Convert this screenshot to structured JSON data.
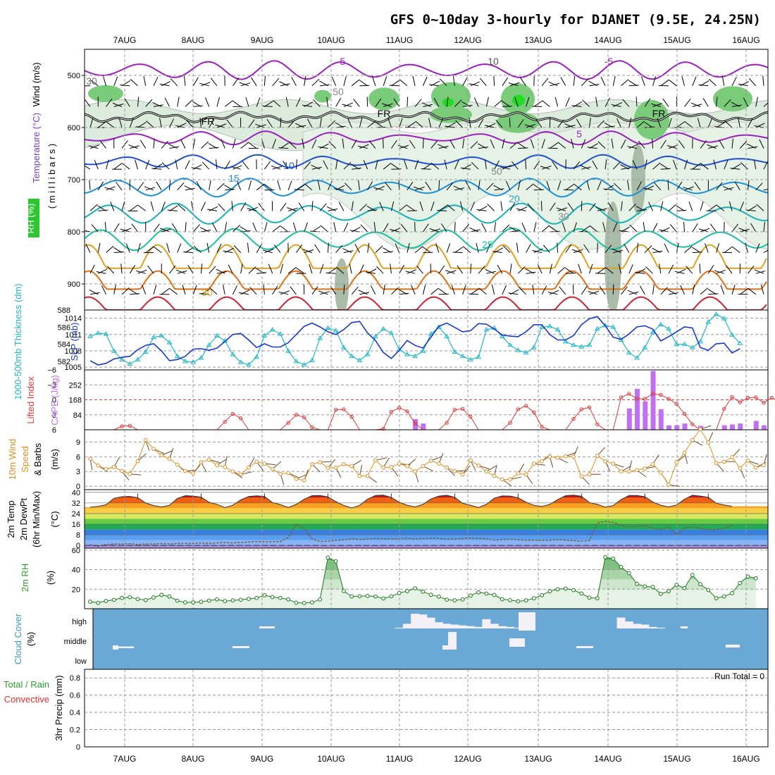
{
  "title": "GFS 0~10day 3-hourly for DJANET (9.5E, 24.25N)",
  "run_total": "Run Total = 0",
  "colors": {
    "temperature": "#d43c3c",
    "wind": "#000000",
    "rh": "#2ec62e",
    "thickness": "#20b8c8",
    "slp": "#1838d0",
    "lifted_index": "#e03a3a",
    "cape": "#c070f0",
    "wind10": "#e09020",
    "rh2m": "#2ea02e",
    "cloud": "#6aa8d6",
    "cloud_label": "#3a9ad0",
    "precip_total": "#2ea02e",
    "precip_conv": "#e03030"
  },
  "chart_data": [
    {
      "type": "contour",
      "name": "upper-air",
      "ylabel_parts": [
        "Wind (m/s)",
        "Temperature (°C)",
        "RH (%)"
      ],
      "ylabel_right": "( m i l l i b a r s )",
      "yticks": [
        500,
        600,
        700,
        800,
        900
      ],
      "ylim": [
        450,
        950
      ],
      "x_dates": [
        "7AUG",
        "8AUG",
        "9AUG",
        "10AUG",
        "11AUG",
        "12AUG",
        "13AUG",
        "14AUG",
        "15AUG",
        "16AUG"
      ],
      "contour_labels": [
        "-5",
        "-5",
        "10",
        "30",
        "FR",
        "FR",
        "FR",
        "5",
        "10",
        "15",
        "20",
        "25",
        "30",
        "30",
        "50",
        "50"
      ],
      "isotherms": [
        {
          "temp": -5,
          "base_mb": 490,
          "amp": 14,
          "color": "#9a20c0"
        },
        {
          "temp": 5,
          "base_mb": 620,
          "amp": 9,
          "color": "#9a20c0"
        },
        {
          "temp": 10,
          "base_mb": 665,
          "amp": 9,
          "color": "#2050d0"
        },
        {
          "temp": 15,
          "base_mb": 715,
          "amp": 14,
          "color": "#1c90d8"
        },
        {
          "temp": 20,
          "base_mb": 765,
          "amp": 16,
          "color": "#18b0b8"
        },
        {
          "temp": 25,
          "base_mb": 815,
          "amp": 18,
          "color": "#18c0a0"
        }
      ]
    },
    {
      "type": "line",
      "name": "thickness-slp",
      "ylabel_left": "1000-500mb Thickness (dm)",
      "ylabel_right": "SLP (mb)",
      "yticks_left": [
        582,
        584,
        586,
        588
      ],
      "yticks_right": [
        1005,
        1008,
        1011,
        1014
      ],
      "ylim_left": [
        581,
        588
      ],
      "ylim_right": [
        1004.5,
        1015.5
      ],
      "series": [
        {
          "name": "thickness",
          "values": [
            584.9,
            585.3,
            585.2,
            583.2,
            582.2,
            581.7,
            582.2,
            583.1,
            584.8,
            585.0,
            584.2,
            582.6,
            582.0,
            581.9,
            582.4,
            583.9,
            585.0,
            584.4,
            582.8,
            581.9,
            581.6,
            582.5,
            585.0,
            585.7,
            585.2,
            583.2,
            582.0,
            581.6,
            582.1,
            584.7,
            585.9,
            585.6,
            583.6,
            582.6,
            582.1,
            582.8,
            584.9,
            585.8,
            585.3,
            583.4,
            582.8,
            582.6,
            583.2,
            585.2,
            586.0,
            584.9,
            583.1,
            582.6,
            582.2,
            582.5,
            585.7,
            585.9,
            584.9,
            583.9,
            583.3,
            583.0,
            583.6,
            586.0,
            586.1,
            585.7,
            584.3,
            583.9,
            583.7,
            583.9,
            585.8,
            586.2,
            586.0,
            584.5,
            583.0,
            582.4,
            583.6,
            585.4,
            586.3,
            585.8,
            584.0,
            584.0,
            583.6,
            584.3,
            586.6,
            587.5,
            587.0,
            585.1,
            584.1
          ]
        },
        {
          "name": "SLP",
          "values": [
            1006.2,
            1005.4,
            1005.7,
            1006.5,
            1006.8,
            1007.0,
            1008.2,
            1009.0,
            1009.3,
            1008.0,
            1006.2,
            1006.4,
            1007.0,
            1008.3,
            1008.4,
            1008.1,
            1008.5,
            1009.7,
            1011.0,
            1011.2,
            1010.0,
            1008.6,
            1009.3,
            1008.7,
            1008.7,
            1009.5,
            1011.0,
            1012.5,
            1013.1,
            1012.4,
            1011.5,
            1011.0,
            1011.9,
            1013.2,
            1013.4,
            1011.3,
            1009.9,
            1007.7,
            1006.6,
            1008.1,
            1009.9,
            1009.0,
            1008.5,
            1010.5,
            1012.5,
            1013.1,
            1012.3,
            1011.5,
            1011.7,
            1013.0,
            1012.9,
            1012.0,
            1010.9,
            1010.7,
            1010.6,
            1011.5,
            1012.8,
            1012.8,
            1011.0,
            1010.0,
            1010.0,
            1010.8,
            1012.8,
            1013.9,
            1014.3,
            1012.6,
            1010.5,
            1010.1,
            1011.1,
            1012.4,
            1012.6,
            1012.0,
            1009.8,
            1010.6,
            1011.5,
            1012.4,
            1012.2,
            1008.6,
            1008.1,
            1009.3,
            1009.4,
            1007.6,
            1008.4
          ]
        }
      ]
    },
    {
      "type": "bar-line",
      "name": "cape-li",
      "ylabel_left": "Lifted Index",
      "ylabel_right": "CAPE (J/kg)",
      "yticks_left": [
        -6,
        -3,
        0,
        3,
        6
      ],
      "yticks_right": [
        84,
        168,
        252
      ],
      "ylim_left": [
        -6,
        6
      ],
      "ylim_right": [
        0,
        336
      ],
      "series": [
        {
          "name": "Lifted Index",
          "values": [
            6.0,
            6.0,
            6.0,
            6.0,
            5.3,
            5.2,
            6.0,
            6.0,
            6.0,
            6.0,
            6.0,
            6.0,
            6.0,
            6.0,
            6.0,
            6.0,
            6.0,
            4.4,
            2.8,
            3.7,
            6.0,
            6.0,
            6.0,
            6.0,
            6.0,
            4.6,
            3.0,
            3.5,
            5.5,
            6.0,
            6.0,
            2.0,
            1.9,
            3.4,
            6.0,
            6.0,
            6.0,
            5.8,
            2.4,
            1.6,
            2.3,
            4.7,
            6.0,
            6.0,
            6.0,
            4.6,
            2.0,
            1.8,
            3.4,
            6.0,
            6.0,
            6.0,
            6.0,
            4.6,
            1.9,
            1.2,
            2.5,
            5.4,
            6.0,
            6.0,
            6.0,
            3.8,
            1.9,
            1.5,
            4.9,
            6.0,
            6.0,
            -0.5,
            -1.2,
            -0.2,
            -0.2,
            -1.2,
            -1.0,
            -0.2,
            0.8,
            2.8,
            4.9,
            6.0,
            6.0,
            6.0,
            1.8,
            -0.6,
            0.5,
            -0.4,
            -0.5,
            0.6,
            -0.4,
            0.4
          ]
        },
        {
          "name": "CAPE",
          "values": [
            0,
            0,
            0,
            0,
            0,
            0,
            0,
            0,
            0,
            0,
            0,
            0,
            0,
            0,
            0,
            0,
            0,
            0,
            0,
            0,
            0,
            0,
            0,
            0,
            0,
            0,
            0,
            0,
            0,
            0,
            0,
            0,
            0,
            0,
            0,
            0,
            0,
            0,
            0,
            0,
            0,
            60,
            35,
            0,
            0,
            0,
            0,
            0,
            0,
            0,
            0,
            0,
            0,
            0,
            0,
            0,
            0,
            0,
            0,
            0,
            0,
            0,
            0,
            0,
            0,
            0,
            0,
            0,
            0,
            0,
            0,
            0,
            0,
            0,
            0,
            0,
            0,
            0,
            0,
            0,
            0,
            0,
            0,
            0,
            0,
            0,
            0,
            0
          ]
        }
      ]
    },
    {
      "type": "line",
      "name": "wind10",
      "ylabel_left": "10m Wind Speed & Barbs",
      "ylabel_right": "(m/s)",
      "yticks": [
        0,
        3,
        6,
        9
      ],
      "ylim": [
        -0.7,
        11.5
      ],
      "values": [
        5.6,
        4.2,
        3.5,
        3.9,
        3.1,
        2.5,
        5.1,
        9.4,
        7.6,
        6.3,
        5.6,
        4.4,
        3.1,
        2.6,
        4.9,
        5.4,
        4.3,
        3.9,
        3.0,
        2.4,
        3.8,
        5.0,
        4.6,
        3.5,
        2.5,
        2.7,
        1.5,
        1.2,
        4.5,
        4.9,
        3.7,
        3.8,
        4.5,
        4.1,
        2.1,
        2.1,
        5.3,
        3.8,
        3.9,
        4.6,
        4.1,
        3.0,
        4.1,
        5.2,
        4.6,
        3.8,
        3.1,
        2.4,
        5.3,
        4.2,
        3.0,
        2.1,
        1.4,
        1.4,
        2.6,
        2.4,
        4.6,
        5.1,
        6.0,
        5.8,
        6.1,
        6.0,
        2.0,
        2.4,
        6.2,
        5.1,
        4.6,
        3.0,
        3.0,
        3.3,
        3.6,
        4.5,
        2.8,
        0.3,
        4.9,
        6.8,
        9.4,
        11.6,
        8.9,
        4.7,
        5.0,
        5.9,
        3.7,
        5.2,
        3.8,
        4.3
      ]
    },
    {
      "type": "area",
      "name": "temp2m",
      "ylabel_left": [
        "2m Temp",
        "2m DewPt",
        "(6hr Min/Max)"
      ],
      "ylabel_right": "(°C)",
      "yticks": [
        0,
        8,
        16,
        24,
        32,
        40
      ],
      "ylim": [
        -2,
        42
      ],
      "temp": [
        28.8,
        29.4,
        30.6,
        35.5,
        36.7,
        36.9,
        36.0,
        32.0,
        30.0,
        29.0,
        30.2,
        35.4,
        37.5,
        37.2,
        36.4,
        32.5,
        31.0,
        28.5,
        30.3,
        34.3,
        36.8,
        37.4,
        36.9,
        32.3,
        30.8,
        28.6,
        30.9,
        34.8,
        37.5,
        37.6,
        36.6,
        33.0,
        30.1,
        28.2,
        30.2,
        34.8,
        37.6,
        37.9,
        36.2,
        32.5,
        30.3,
        29.0,
        30.9,
        35.0,
        37.2,
        37.8,
        36.3,
        31.7,
        30.3,
        28.6,
        30.9,
        35.6,
        37.3,
        37.2,
        35.9,
        32.6,
        30.2,
        29.4,
        30.9,
        34.5,
        37.5,
        37.9,
        37.0,
        32.3,
        30.9,
        28.9,
        30.0,
        34.5,
        37.6,
        37.6,
        36.7,
        32.8,
        30.3,
        29.0,
        30.5,
        34.8,
        37.8,
        37.2,
        36.3,
        31.8,
        30.5,
        29.5
      ],
      "dewpoint": [
        0.5,
        -0.5,
        0.7,
        1.1,
        1.1,
        1.3,
        0.7,
        1.1,
        1.1,
        1.5,
        1.1,
        1.5,
        1.5,
        1.5,
        1.9,
        1.5,
        1.9,
        2.2,
        1.9,
        2.2,
        2.6,
        3.0,
        2.6,
        3.0,
        3.0,
        6.0,
        16.0,
        13.0,
        5.0,
        3.0,
        3.2,
        3.8,
        4.2,
        5.0,
        4.5,
        4.8,
        5.3,
        5.0,
        5.1,
        4.9,
        5.5,
        4.9,
        5.2,
        5.6,
        5.3,
        4.7,
        4.9,
        5.2,
        5.6,
        5.3,
        5.0,
        4.0,
        4.4,
        4.7,
        4.3,
        4.0,
        4.0,
        3.7,
        4.0,
        4.3,
        4.0,
        3.6,
        3.3,
        3.7,
        17.0,
        18.0,
        17.5,
        15.0,
        14.0,
        14.5,
        15.0,
        13.0,
        12.0,
        14.0,
        8.0,
        13.0,
        14.0,
        13.0,
        12.0,
        12.0,
        13.0,
        15.0
      ]
    },
    {
      "type": "area",
      "name": "rh2m",
      "ylabel_left": "2m RH",
      "ylabel_right": "(%)",
      "yticks": [
        20,
        40,
        60
      ],
      "ylim": [
        0,
        62
      ],
      "values": [
        7.2,
        6.1,
        7.9,
        9.1,
        11.1,
        11.8,
        9.9,
        8.8,
        11.5,
        14.2,
        12.5,
        8.2,
        6.5,
        6.5,
        7.1,
        8.3,
        9.6,
        7.8,
        8.5,
        9.2,
        10.1,
        11.0,
        13.8,
        11.9,
        11.0,
        9.6,
        6.2,
        5.8,
        6.5,
        9.5,
        52.3,
        48.5,
        18.1,
        12.6,
        12.8,
        13.1,
        12.6,
        10.6,
        12.7,
        16.1,
        18.0,
        20.9,
        17.5,
        14.3,
        12.4,
        9.3,
        8.6,
        9.5,
        13.5,
        16.8,
        15.5,
        14.1,
        9.7,
        8.8,
        7.6,
        8.5,
        10.7,
        13.9,
        17.8,
        19.9,
        20.6,
        19.1,
        15.6,
        11.4,
        10.7,
        52.7,
        51.3,
        42.6,
        36.4,
        25.4,
        22.9,
        22.3,
        15.2,
        17.9,
        24.5,
        21.1,
        34.5,
        25.1,
        19.1,
        10.8,
        12.6,
        15.9,
        26.3,
        33.0,
        31.1
      ]
    },
    {
      "type": "heatmap",
      "name": "cloud",
      "ylabel_left": "Cloud Cover",
      "ylabel_right": "(%)",
      "level_labels": [
        "high",
        "middle",
        "low"
      ],
      "high": [
        0,
        0,
        0,
        0,
        0,
        0,
        0,
        0,
        0,
        0,
        0,
        0,
        0,
        0,
        0,
        0,
        0,
        0,
        0,
        0,
        0,
        0,
        0,
        0,
        0,
        0,
        0,
        0,
        0,
        0,
        0,
        0,
        0,
        0,
        0,
        0,
        0,
        0,
        0,
        5,
        30,
        95,
        90,
        70,
        40,
        30,
        25,
        20,
        15,
        10,
        60,
        30,
        15,
        10,
        5,
        0,
        0,
        0,
        0,
        0,
        0,
        0,
        0,
        0,
        0,
        0,
        0,
        70,
        45,
        30,
        25,
        10,
        5,
        0,
        0,
        0,
        0,
        0,
        0,
        0,
        0,
        0,
        0,
        0,
        0,
        0,
        0,
        0
      ],
      "middle": [
        0,
        0,
        0,
        0,
        10,
        10,
        0,
        0,
        0,
        0,
        0,
        0,
        0,
        0,
        0,
        0,
        0,
        0,
        0,
        0,
        0,
        0,
        0,
        0,
        0,
        0,
        0,
        0,
        0,
        0,
        0,
        0,
        0,
        0,
        0,
        0,
        0,
        0,
        0,
        0,
        0,
        0,
        0,
        0,
        0,
        0,
        0,
        0,
        0,
        0,
        0,
        0,
        0,
        0,
        0,
        0,
        0,
        0,
        0,
        0,
        0,
        0,
        0,
        0,
        0,
        0,
        0,
        0,
        0,
        0,
        0,
        0,
        0,
        0,
        0,
        0,
        0,
        0,
        0,
        0,
        0,
        0,
        0,
        0,
        0,
        0,
        0,
        0
      ],
      "low": [
        0,
        0,
        0,
        0,
        0,
        0,
        0,
        0,
        0,
        0,
        0,
        0,
        0,
        0,
        0,
        0,
        0,
        0,
        0,
        0,
        0,
        0,
        0,
        0,
        0,
        0,
        0,
        0,
        0,
        0,
        0,
        0,
        0,
        0,
        0,
        0,
        0,
        0,
        0,
        0,
        0,
        0,
        0,
        0,
        0,
        0,
        0,
        0,
        0,
        0,
        0,
        0,
        0,
        0,
        0,
        0,
        0,
        0,
        0,
        0,
        0,
        0,
        0,
        0,
        0,
        0,
        0,
        0,
        0,
        0,
        0,
        0,
        0,
        0,
        0,
        0,
        0,
        0,
        0,
        0,
        0,
        0,
        0,
        0,
        0,
        0,
        0,
        0
      ]
    },
    {
      "type": "bar",
      "name": "precip",
      "ylabel_left": [
        "Total / Rain",
        "Convective"
      ],
      "ylabel_mid": "3hr Precip (mm)",
      "yticks": [
        0,
        0.2,
        0.4,
        0.6,
        0.8
      ],
      "ylim": [
        0,
        0.9
      ],
      "values": []
    }
  ]
}
